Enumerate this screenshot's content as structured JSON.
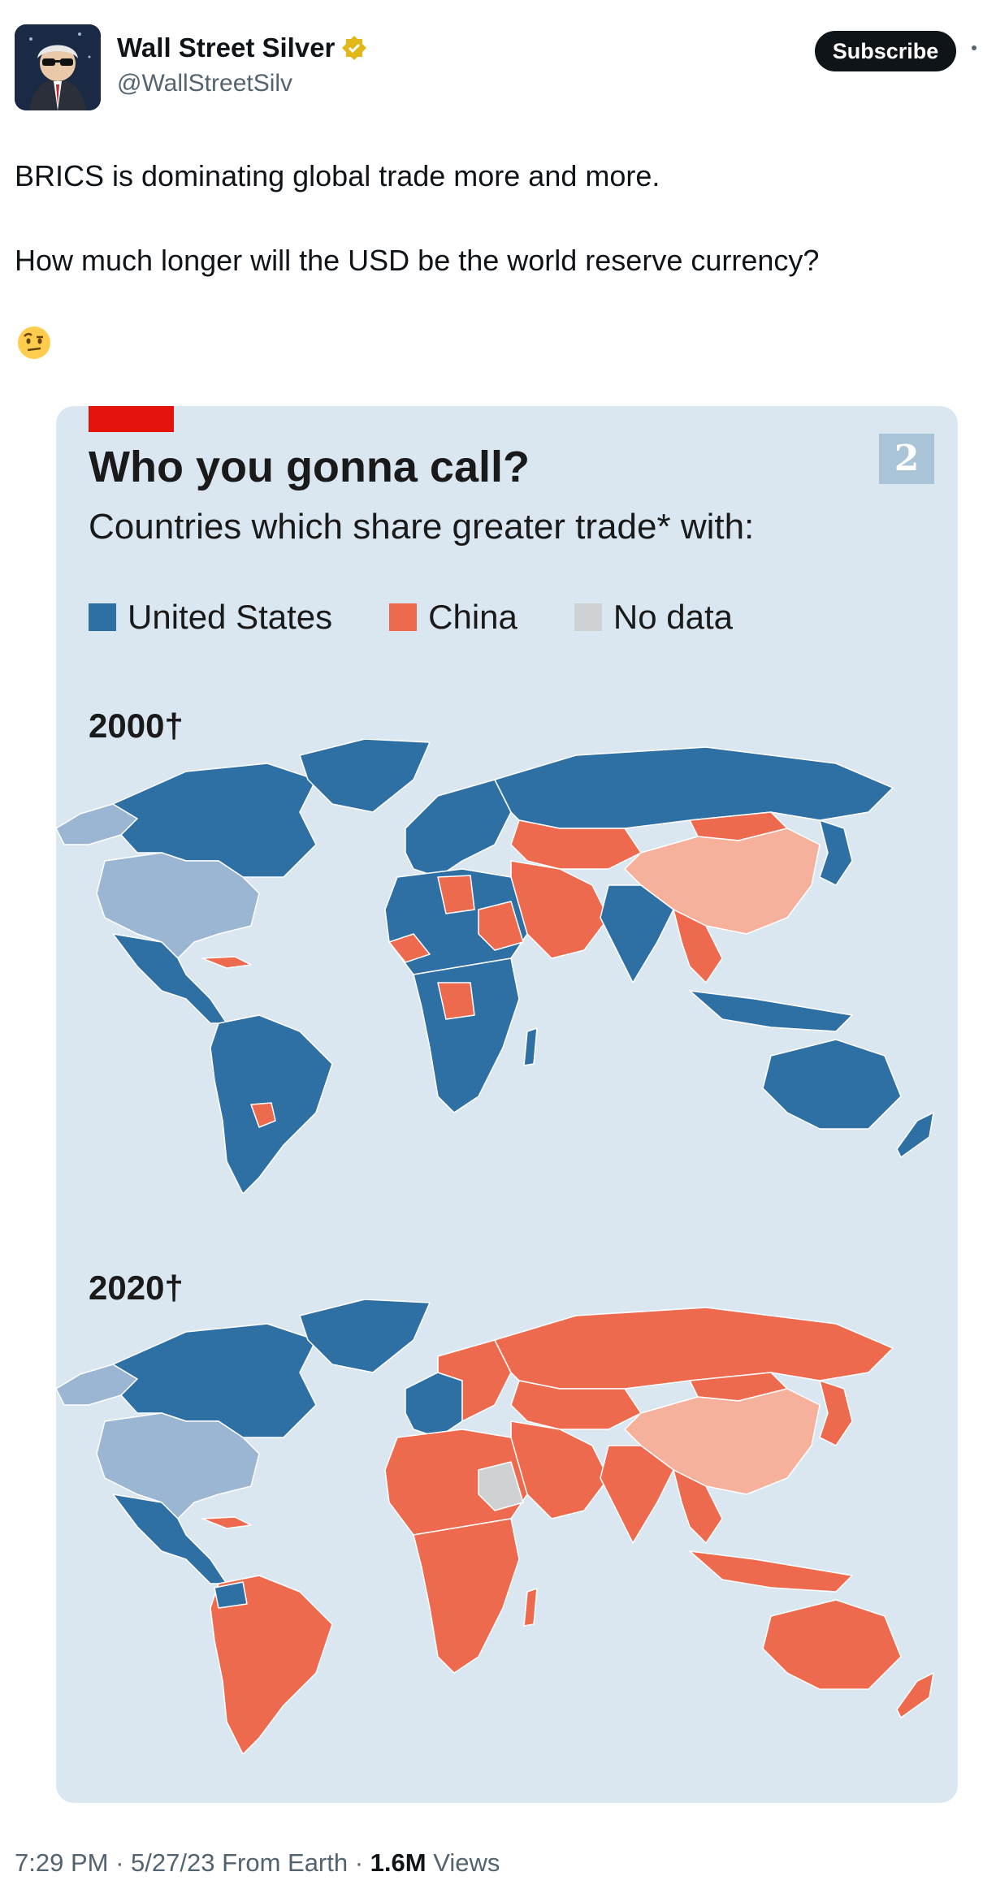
{
  "author": {
    "display_name": "Wall Street Silver",
    "handle": "@WallStreetSilv",
    "subscribe_label": "Subscribe"
  },
  "tweet": {
    "line1": "BRICS is dominating global trade more and more.",
    "line2": "How much longer will the USD be the world reserve currency?",
    "emoji": "face-with-raised-eyebrow"
  },
  "chart": {
    "page_number": "2",
    "title": "Who you gonna call?",
    "subtitle": "Countries which share greater trade* with:",
    "legend": [
      {
        "label": "United States",
        "color": "#2e6fa4"
      },
      {
        "label": "China",
        "color": "#ee6a4e"
      },
      {
        "label": "No data",
        "color": "#cfd2d2"
      }
    ],
    "year_2000": "2000†",
    "year_2020": "2020†",
    "colors": {
      "us": "#2e6fa4",
      "us_self": "#9bb6d3",
      "china": "#ee6a4e",
      "china_self": "#f5b19c",
      "no_data": "#cfd2d2",
      "ocean": "#dae6f0"
    }
  },
  "footer": {
    "time": "7:29 PM",
    "date": "5/27/23",
    "source": "From Earth",
    "views_count": "1.6M",
    "views_label": "Views"
  }
}
